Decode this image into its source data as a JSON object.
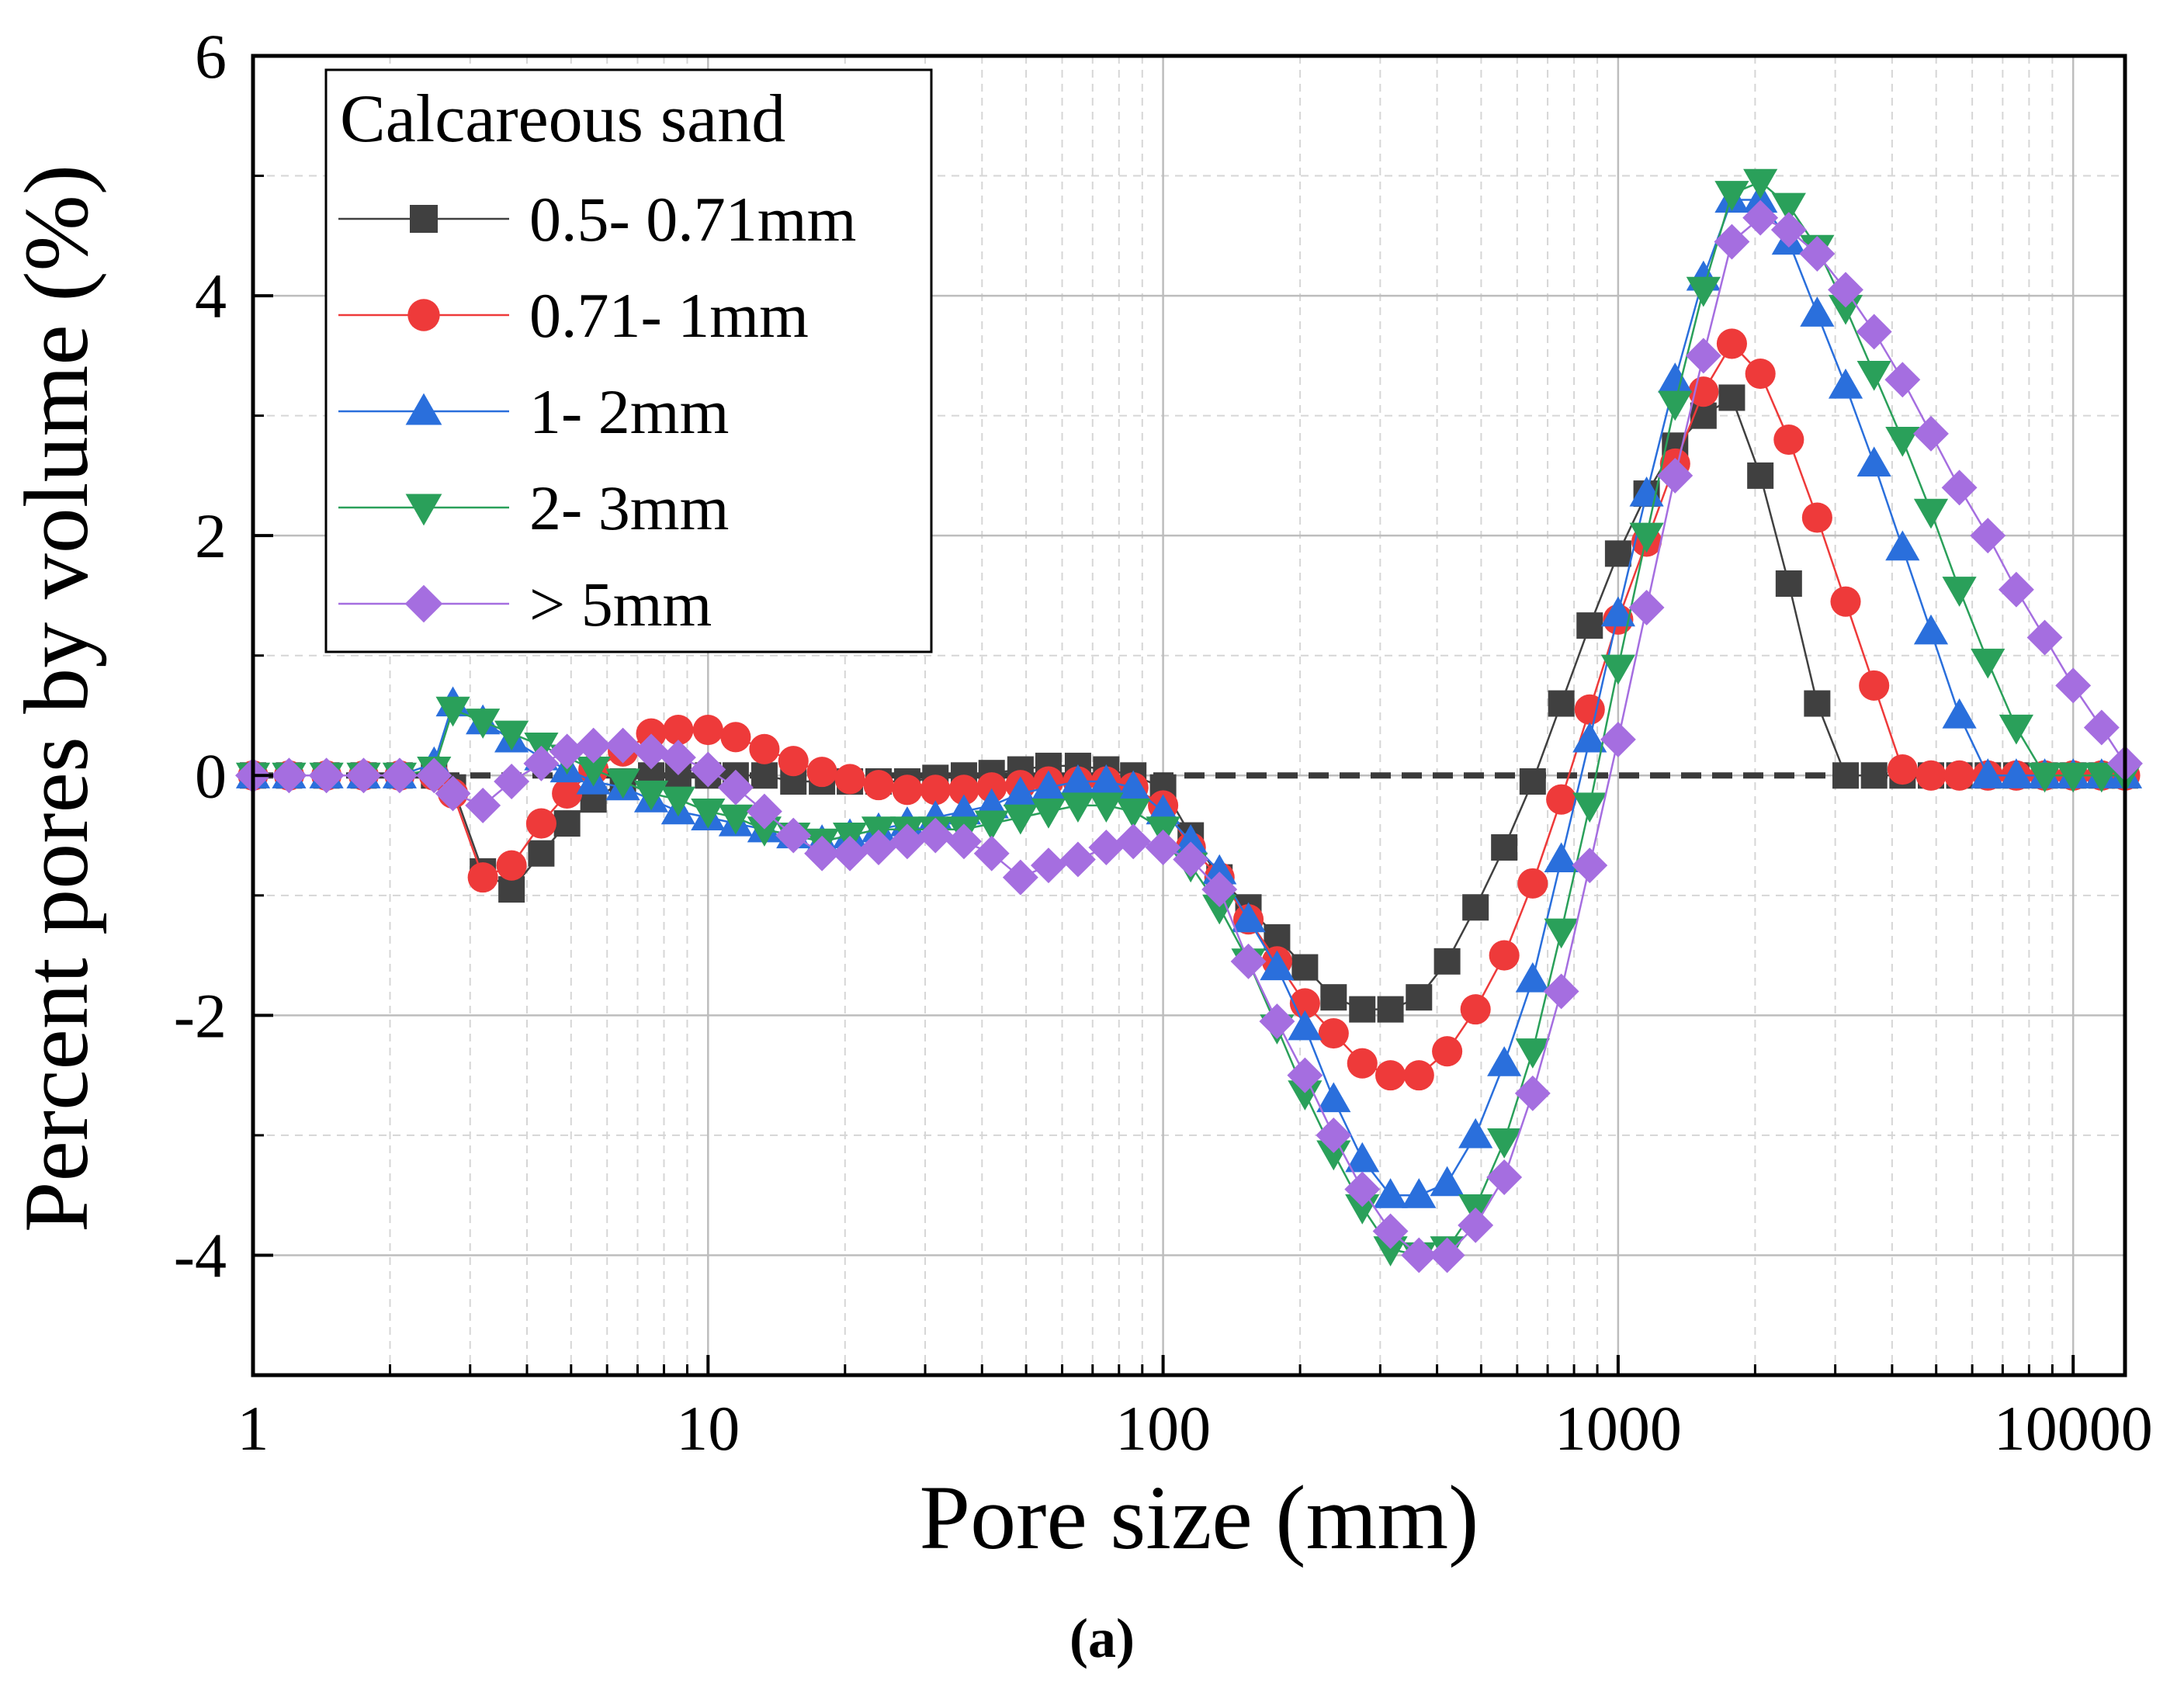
{
  "chart_data": {
    "type": "line",
    "x_scale": "log",
    "xlabel": "Pore size (mm)",
    "ylabel": "Percent pores by volume (%)",
    "xlim": [
      1,
      13000
    ],
    "ylim": [
      -5,
      6
    ],
    "x_ticks": [
      "1",
      "10",
      "100",
      "1000",
      "10000"
    ],
    "y_ticks": [
      "-4",
      "-2",
      "0",
      "2",
      "4",
      "6"
    ],
    "panel_label": "(a)",
    "legend": {
      "title": "Calcareous sand",
      "position": "top-left"
    },
    "zero_line": {
      "y": 0,
      "style": "dashed",
      "color": "#3a3a3a"
    },
    "grid": true,
    "series": [
      {
        "name": "0.5- 0.71mm",
        "marker": "square",
        "color": "#404040",
        "x": [
          1,
          1.2,
          1.45,
          1.75,
          2.1,
          2.5,
          2.75,
          3.2,
          3.7,
          4.3,
          4.9,
          5.6,
          6.5,
          7.5,
          8.6,
          10,
          11.5,
          13.3,
          15.4,
          17.8,
          20.5,
          23.7,
          27.4,
          31.6,
          36.5,
          42,
          48.6,
          56,
          65,
          75,
          86,
          100,
          115,
          133,
          154,
          178,
          205,
          237,
          274,
          316,
          365,
          421,
          486,
          562,
          649,
          750,
          866,
          1000,
          1155,
          1334,
          1540,
          1778,
          2054,
          2372,
          2738,
          3162,
          3652,
          4217,
          4870,
          5623,
          6494,
          7499,
          8660,
          10000,
          11548,
          13000
        ],
        "y": [
          0,
          0,
          0,
          0,
          0,
          0,
          -0.1,
          -0.8,
          -0.95,
          -0.65,
          -0.4,
          -0.2,
          -0.05,
          0,
          0,
          0,
          0,
          0,
          -0.05,
          -0.05,
          -0.05,
          -0.05,
          -0.05,
          -0.02,
          0,
          0.02,
          0.05,
          0.08,
          0.08,
          0.05,
          0,
          -0.1,
          -0.5,
          -0.85,
          -1.1,
          -1.35,
          -1.6,
          -1.85,
          -1.95,
          -1.95,
          -1.85,
          -1.55,
          -1.1,
          -0.6,
          -0.05,
          0.6,
          1.25,
          1.85,
          2.35,
          2.75,
          3.0,
          3.15,
          2.5,
          1.6,
          0.6,
          0,
          0,
          0,
          0,
          0,
          0,
          0,
          0,
          0,
          0,
          0
        ]
      },
      {
        "name": "0.71- 1mm",
        "marker": "circle",
        "color": "#ee3a3a",
        "x": [
          1,
          1.2,
          1.45,
          1.75,
          2.1,
          2.5,
          2.75,
          3.2,
          3.7,
          4.3,
          4.9,
          5.6,
          6.5,
          7.5,
          8.6,
          10,
          11.5,
          13.3,
          15.4,
          17.8,
          20.5,
          23.7,
          27.4,
          31.6,
          36.5,
          42,
          48.6,
          56,
          65,
          75,
          86,
          100,
          115,
          133,
          154,
          178,
          205,
          237,
          274,
          316,
          365,
          421,
          486,
          562,
          649,
          750,
          866,
          1000,
          1155,
          1334,
          1540,
          1778,
          2054,
          2372,
          2738,
          3162,
          3652,
          4217,
          4870,
          5623,
          6494,
          7499,
          8660,
          10000,
          11548,
          13000
        ],
        "y": [
          0,
          0,
          0,
          0,
          0,
          0,
          -0.15,
          -0.85,
          -0.75,
          -0.4,
          -0.15,
          0.05,
          0.2,
          0.35,
          0.38,
          0.38,
          0.32,
          0.22,
          0.12,
          0.03,
          -0.03,
          -0.08,
          -0.12,
          -0.12,
          -0.12,
          -0.1,
          -0.08,
          -0.05,
          -0.05,
          -0.05,
          -0.1,
          -0.25,
          -0.6,
          -0.85,
          -1.2,
          -1.55,
          -1.9,
          -2.15,
          -2.4,
          -2.5,
          -2.5,
          -2.3,
          -1.95,
          -1.5,
          -0.9,
          -0.2,
          0.55,
          1.3,
          1.95,
          2.6,
          3.2,
          3.6,
          3.35,
          2.8,
          2.15,
          1.45,
          0.75,
          0.05,
          0,
          0,
          0,
          0,
          0,
          0,
          0,
          0
        ]
      },
      {
        "name": "1- 2mm",
        "marker": "triangle-up",
        "color": "#2a6fdc",
        "x": [
          1,
          1.2,
          1.45,
          1.75,
          2.1,
          2.5,
          2.75,
          3.2,
          3.7,
          4.3,
          4.9,
          5.6,
          6.5,
          7.5,
          8.6,
          10,
          11.5,
          13.3,
          15.4,
          17.8,
          20.5,
          23.7,
          27.4,
          31.6,
          36.5,
          42,
          48.6,
          56,
          65,
          75,
          86,
          100,
          115,
          133,
          154,
          178,
          205,
          237,
          274,
          316,
          365,
          421,
          486,
          562,
          649,
          750,
          866,
          1000,
          1155,
          1334,
          1540,
          1778,
          2054,
          2372,
          2738,
          3162,
          3652,
          4217,
          4870,
          5623,
          6494,
          7499,
          8660,
          10000,
          11548,
          13000
        ],
        "y": [
          0,
          0,
          0,
          0,
          0,
          0.1,
          0.6,
          0.45,
          0.3,
          0.15,
          0.05,
          -0.05,
          -0.1,
          -0.2,
          -0.3,
          -0.35,
          -0.4,
          -0.45,
          -0.5,
          -0.55,
          -0.5,
          -0.45,
          -0.4,
          -0.35,
          -0.3,
          -0.25,
          -0.15,
          -0.1,
          -0.05,
          -0.05,
          -0.1,
          -0.3,
          -0.55,
          -0.8,
          -1.2,
          -1.6,
          -2.1,
          -2.7,
          -3.2,
          -3.5,
          -3.5,
          -3.4,
          -3.0,
          -2.4,
          -1.7,
          -0.7,
          0.3,
          1.35,
          2.35,
          3.3,
          4.15,
          4.8,
          4.8,
          4.45,
          3.85,
          3.25,
          2.6,
          1.9,
          1.2,
          0.5,
          0,
          0,
          0,
          0,
          0,
          0
        ]
      },
      {
        "name": "2- 3mm",
        "marker": "triangle-down",
        "color": "#2aa05a",
        "x": [
          1,
          1.2,
          1.45,
          1.75,
          2.1,
          2.5,
          2.75,
          3.2,
          3.7,
          4.3,
          4.9,
          5.6,
          6.5,
          7.5,
          8.6,
          10,
          11.5,
          13.3,
          15.4,
          17.8,
          20.5,
          23.7,
          27.4,
          31.6,
          36.5,
          42,
          48.6,
          56,
          65,
          75,
          86,
          100,
          115,
          133,
          154,
          178,
          205,
          237,
          274,
          316,
          365,
          421,
          486,
          562,
          649,
          750,
          866,
          1000,
          1155,
          1334,
          1540,
          1778,
          2054,
          2372,
          2738,
          3162,
          3652,
          4217,
          4870,
          5623,
          6494,
          7499,
          8660,
          10000,
          11548,
          13000
        ],
        "y": [
          0,
          0,
          0,
          0,
          0,
          0.05,
          0.55,
          0.45,
          0.35,
          0.25,
          0.15,
          0.05,
          -0.05,
          -0.15,
          -0.2,
          -0.3,
          -0.35,
          -0.45,
          -0.5,
          -0.55,
          -0.5,
          -0.45,
          -0.45,
          -0.45,
          -0.45,
          -0.4,
          -0.35,
          -0.3,
          -0.25,
          -0.25,
          -0.3,
          -0.45,
          -0.75,
          -1.1,
          -1.55,
          -2.1,
          -2.65,
          -3.15,
          -3.6,
          -3.95,
          -4.0,
          -3.95,
          -3.6,
          -3.05,
          -2.3,
          -1.3,
          -0.25,
          0.9,
          2.0,
          3.1,
          4.05,
          4.85,
          4.95,
          4.75,
          4.4,
          3.9,
          3.35,
          2.8,
          2.2,
          1.55,
          0.95,
          0.4,
          0,
          0,
          0,
          0
        ]
      },
      {
        "name": ">  5mm",
        "marker": "diamond",
        "color": "#a56ee0",
        "x": [
          1,
          1.2,
          1.45,
          1.75,
          2.1,
          2.5,
          2.75,
          3.2,
          3.7,
          4.3,
          4.9,
          5.6,
          6.5,
          7.5,
          8.6,
          10,
          11.5,
          13.3,
          15.4,
          17.8,
          20.5,
          23.7,
          27.4,
          31.6,
          36.5,
          42,
          48.6,
          56,
          65,
          75,
          86,
          100,
          115,
          133,
          154,
          178,
          205,
          237,
          274,
          316,
          365,
          421,
          486,
          562,
          649,
          750,
          866,
          1000,
          1155,
          1334,
          1540,
          1778,
          2054,
          2372,
          2738,
          3162,
          3652,
          4217,
          4870,
          5623,
          6494,
          7499,
          8660,
          10000,
          11548,
          13000
        ],
        "y": [
          0,
          0,
          0,
          0,
          0,
          0,
          -0.15,
          -0.25,
          -0.05,
          0.1,
          0.2,
          0.25,
          0.25,
          0.2,
          0.15,
          0.05,
          -0.1,
          -0.3,
          -0.5,
          -0.65,
          -0.65,
          -0.6,
          -0.55,
          -0.5,
          -0.55,
          -0.65,
          -0.85,
          -0.75,
          -0.7,
          -0.6,
          -0.55,
          -0.6,
          -0.7,
          -0.95,
          -1.55,
          -2.05,
          -2.5,
          -3.0,
          -3.45,
          -3.8,
          -4.0,
          -4.0,
          -3.75,
          -3.35,
          -2.65,
          -1.8,
          -0.75,
          0.3,
          1.4,
          2.5,
          3.5,
          4.45,
          4.65,
          4.55,
          4.35,
          4.05,
          3.7,
          3.3,
          2.85,
          2.4,
          2.0,
          1.55,
          1.15,
          0.75,
          0.4,
          0.1
        ]
      }
    ]
  }
}
